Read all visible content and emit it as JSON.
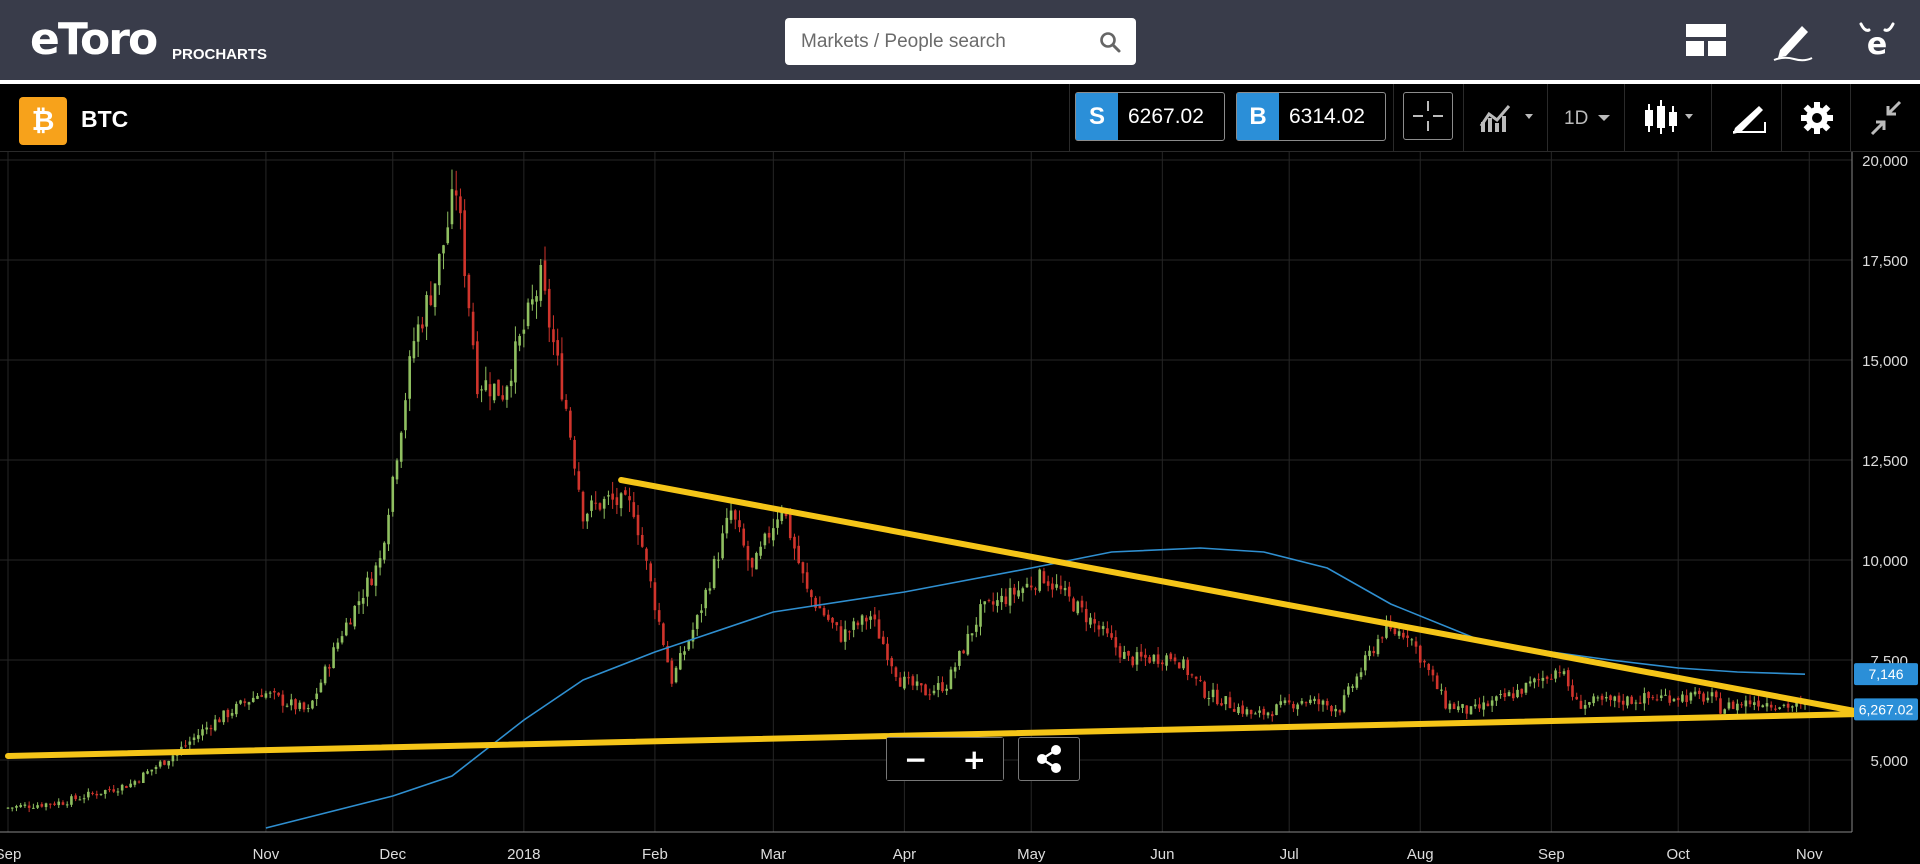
{
  "header": {
    "logo_text": "eToro",
    "product_label": "PROCHARTS",
    "search_placeholder": "Markets / People search",
    "icons": [
      "layout-icon",
      "edit-icon",
      "etoro-profile-icon"
    ]
  },
  "instrument": {
    "symbol": "BTC",
    "badge_glyph": "₿",
    "sell_tag": "S",
    "sell_price": "6267.02",
    "buy_tag": "B",
    "buy_price": "6314.02",
    "timeframe": "1D",
    "tools": [
      "crosshair-icon",
      "indicators-icon",
      "timeframe-select",
      "candles-icon",
      "drawing-icon",
      "settings-icon",
      "fullscreen-exit-icon"
    ]
  },
  "colors": {
    "up": "#8fbf60",
    "down": "#d0342c",
    "trendline": "#f5c518",
    "moving_average": "#2f8fd0",
    "label_bg": "#2b8fd8",
    "grid": "#262626"
  },
  "chart_data": {
    "type": "candlestick",
    "y_ticks": [
      5000,
      7500,
      10000,
      12500,
      15000,
      17500,
      20000
    ],
    "y_tick_labels": [
      "5,000",
      "7,500",
      "10,000",
      "12,500",
      "15,000",
      "17,500",
      "20,000"
    ],
    "ylim": [
      3200,
      20200
    ],
    "x_tick_labels": [
      "Sep",
      "Nov",
      "Dec",
      "2018",
      "Feb",
      "Mar",
      "Apr",
      "May",
      "Jun",
      "Jul",
      "Aug",
      "Sep",
      "Oct",
      "Nov"
    ],
    "x_tick_dates": [
      "2017-09-01",
      "2017-11-01",
      "2017-12-01",
      "2018-01-01",
      "2018-02-01",
      "2018-03-01",
      "2018-04-01",
      "2018-05-01",
      "2018-06-01",
      "2018-07-01",
      "2018-08-01",
      "2018-09-01",
      "2018-10-01",
      "2018-11-01"
    ],
    "xlim": [
      "2017-09-01",
      "2018-11-13"
    ],
    "grid": true,
    "price_path": [
      [
        "2017-09-01",
        3800
      ],
      [
        "2017-09-15",
        3950
      ],
      [
        "2017-10-01",
        4400
      ],
      [
        "2017-10-12",
        5200
      ],
      [
        "2017-10-20",
        5900
      ],
      [
        "2017-11-01",
        6700
      ],
      [
        "2017-11-12",
        6200
      ],
      [
        "2017-11-20",
        8200
      ],
      [
        "2017-11-29",
        10000
      ],
      [
        "2017-12-07",
        15500
      ],
      [
        "2017-12-12",
        17000
      ],
      [
        "2017-12-17",
        19300
      ],
      [
        "2017-12-22",
        14500
      ],
      [
        "2017-12-28",
        14200
      ],
      [
        "2018-01-06",
        17000
      ],
      [
        "2018-01-12",
        13800
      ],
      [
        "2018-01-16",
        11200
      ],
      [
        "2018-01-22",
        11500
      ],
      [
        "2018-01-28",
        11300
      ],
      [
        "2018-02-06",
        7000
      ],
      [
        "2018-02-12",
        8500
      ],
      [
        "2018-02-20",
        11200
      ],
      [
        "2018-02-25",
        9700
      ],
      [
        "2018-03-04",
        11400
      ],
      [
        "2018-03-10",
        9200
      ],
      [
        "2018-03-18",
        8100
      ],
      [
        "2018-03-25",
        8600
      ],
      [
        "2018-04-01",
        7000
      ],
      [
        "2018-04-07",
        6700
      ],
      [
        "2018-04-12",
        6900
      ],
      [
        "2018-04-20",
        8700
      ],
      [
        "2018-05-05",
        9600
      ],
      [
        "2018-05-15",
        8600
      ],
      [
        "2018-05-25",
        7500
      ],
      [
        "2018-06-05",
        7600
      ],
      [
        "2018-06-12",
        6700
      ],
      [
        "2018-06-24",
        6100
      ],
      [
        "2018-07-05",
        6500
      ],
      [
        "2018-07-14",
        6300
      ],
      [
        "2018-07-24",
        8200
      ],
      [
        "2018-07-30",
        8200
      ],
      [
        "2018-08-08",
        6400
      ],
      [
        "2018-08-14",
        6200
      ],
      [
        "2018-08-25",
        6700
      ],
      [
        "2018-09-04",
        7300
      ],
      [
        "2018-09-08",
        6400
      ],
      [
        "2018-09-20",
        6500
      ],
      [
        "2018-10-01",
        6600
      ],
      [
        "2018-10-10",
        6550
      ],
      [
        "2018-10-12",
        6300
      ],
      [
        "2018-10-20",
        6480
      ],
      [
        "2018-10-31",
        6320
      ]
    ],
    "moving_average": [
      [
        "2017-11-01",
        3300
      ],
      [
        "2017-12-01",
        4100
      ],
      [
        "2017-12-15",
        4600
      ],
      [
        "2018-01-01",
        6000
      ],
      [
        "2018-01-15",
        7000
      ],
      [
        "2018-02-01",
        7700
      ],
      [
        "2018-03-01",
        8700
      ],
      [
        "2018-04-01",
        9200
      ],
      [
        "2018-05-01",
        9800
      ],
      [
        "2018-05-20",
        10200
      ],
      [
        "2018-06-10",
        10300
      ],
      [
        "2018-06-25",
        10200
      ],
      [
        "2018-07-10",
        9800
      ],
      [
        "2018-07-25",
        8900
      ],
      [
        "2018-08-15",
        8000
      ],
      [
        "2018-09-01",
        7700
      ],
      [
        "2018-09-15",
        7500
      ],
      [
        "2018-10-01",
        7300
      ],
      [
        "2018-10-15",
        7200
      ],
      [
        "2018-10-31",
        7146
      ]
    ],
    "trendlines": [
      {
        "from": [
          "2017-09-01",
          5100
        ],
        "to": [
          "2018-11-13",
          6150
        ]
      },
      {
        "from": [
          "2018-01-24",
          12000
        ],
        "to": [
          "2018-11-13",
          6200
        ]
      }
    ],
    "labels": [
      {
        "text": "7,146",
        "value": 7146
      },
      {
        "text": "6,267.02",
        "value": 6267.02
      }
    ]
  },
  "controls": {
    "zoom_out": "−",
    "zoom_in": "+"
  }
}
